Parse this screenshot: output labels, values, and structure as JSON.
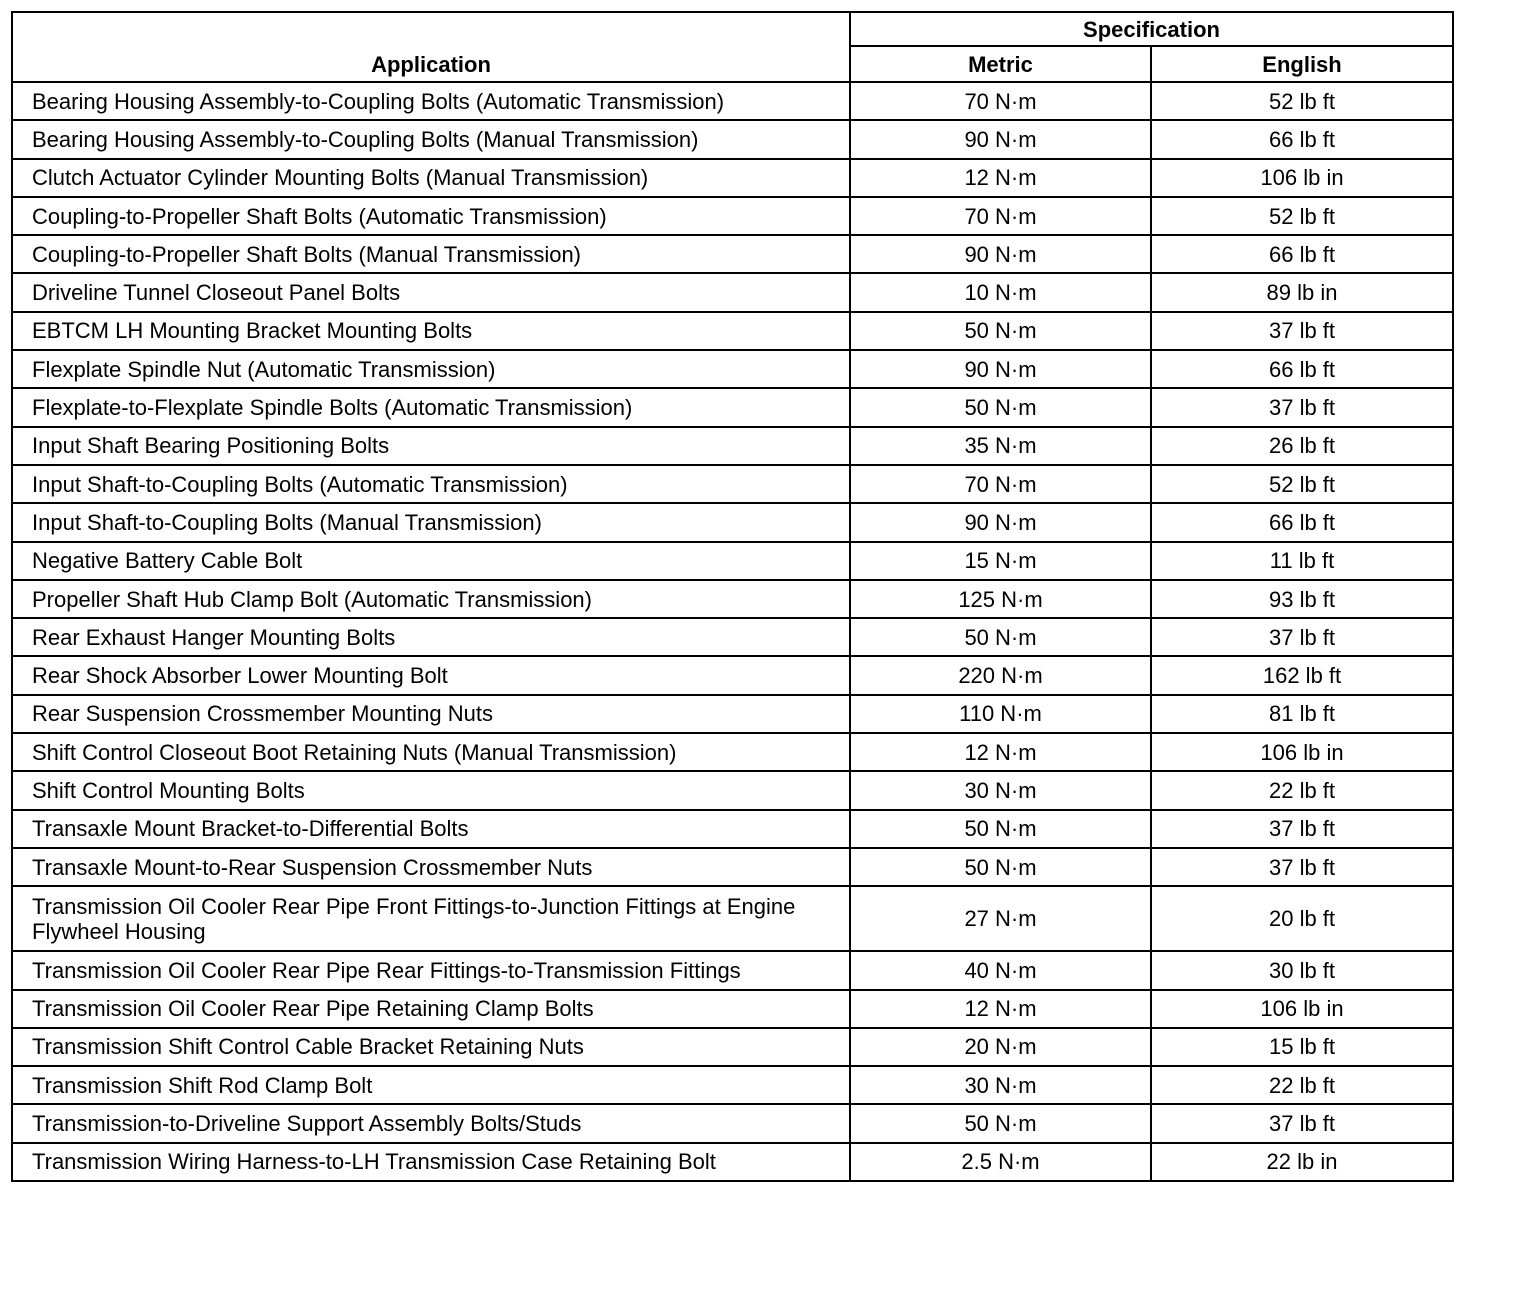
{
  "headers": {
    "application": "Application",
    "specification": "Specification",
    "metric": "Metric",
    "english": "English"
  },
  "rows": [
    {
      "application": "Bearing Housing Assembly-to-Coupling Bolts (Automatic Transmission)",
      "metric": "70 N·m",
      "english": "52 lb ft"
    },
    {
      "application": "Bearing Housing Assembly-to-Coupling Bolts (Manual Transmission)",
      "metric": "90 N·m",
      "english": "66 lb ft"
    },
    {
      "application": "Clutch Actuator Cylinder Mounting Bolts (Manual Transmission)",
      "metric": "12 N·m",
      "english": "106 lb in"
    },
    {
      "application": "Coupling-to-Propeller Shaft Bolts (Automatic Transmission)",
      "metric": "70 N·m",
      "english": "52 lb ft"
    },
    {
      "application": "Coupling-to-Propeller Shaft Bolts (Manual Transmission)",
      "metric": "90 N·m",
      "english": "66 lb ft"
    },
    {
      "application": "Driveline Tunnel Closeout Panel Bolts",
      "metric": "10 N·m",
      "english": "89 lb in"
    },
    {
      "application": "EBTCM LH Mounting Bracket Mounting Bolts",
      "metric": "50 N·m",
      "english": "37 lb ft"
    },
    {
      "application": "Flexplate Spindle Nut (Automatic Transmission)",
      "metric": "90 N·m",
      "english": "66 lb ft"
    },
    {
      "application": "Flexplate-to-Flexplate Spindle Bolts (Automatic Transmission)",
      "metric": "50 N·m",
      "english": "37 lb ft"
    },
    {
      "application": "Input Shaft Bearing Positioning Bolts",
      "metric": "35 N·m",
      "english": "26 lb ft"
    },
    {
      "application": "Input Shaft-to-Coupling Bolts (Automatic Transmission)",
      "metric": "70 N·m",
      "english": "52 lb ft"
    },
    {
      "application": "Input Shaft-to-Coupling Bolts (Manual Transmission)",
      "metric": "90 N·m",
      "english": "66 lb ft"
    },
    {
      "application": "Negative Battery Cable Bolt",
      "metric": "15 N·m",
      "english": "11 lb ft"
    },
    {
      "application": "Propeller Shaft Hub Clamp Bolt (Automatic Transmission)",
      "metric": "125 N·m",
      "english": "93 lb ft"
    },
    {
      "application": "Rear Exhaust Hanger Mounting Bolts",
      "metric": "50 N·m",
      "english": "37 lb ft"
    },
    {
      "application": "Rear Shock Absorber Lower Mounting Bolt",
      "metric": "220 N·m",
      "english": "162 lb ft"
    },
    {
      "application": "Rear Suspension Crossmember Mounting Nuts",
      "metric": "110 N·m",
      "english": "81 lb ft"
    },
    {
      "application": "Shift Control Closeout Boot Retaining Nuts (Manual Transmission)",
      "metric": "12 N·m",
      "english": "106 lb in"
    },
    {
      "application": "Shift Control Mounting Bolts",
      "metric": "30 N·m",
      "english": "22 lb ft"
    },
    {
      "application": "Transaxle Mount Bracket-to-Differential Bolts",
      "metric": "50 N·m",
      "english": "37 lb ft"
    },
    {
      "application": "Transaxle Mount-to-Rear Suspension Crossmember Nuts",
      "metric": "50 N·m",
      "english": "37 lb ft"
    },
    {
      "application": "Transmission Oil Cooler Rear Pipe Front Fittings-to-Junction Fittings at Engine Flywheel Housing",
      "metric": "27 N·m",
      "english": "20 lb ft"
    },
    {
      "application": "Transmission Oil Cooler Rear Pipe Rear Fittings-to-Transmission Fittings",
      "metric": "40 N·m",
      "english": "30 lb ft"
    },
    {
      "application": "Transmission Oil Cooler Rear Pipe Retaining Clamp Bolts",
      "metric": "12 N·m",
      "english": "106 lb in"
    },
    {
      "application": "Transmission Shift Control Cable Bracket Retaining Nuts",
      "metric": "20 N·m",
      "english": "15 lb ft"
    },
    {
      "application": "Transmission Shift Rod Clamp Bolt",
      "metric": "30 N·m",
      "english": "22 lb ft"
    },
    {
      "application": "Transmission-to-Driveline Support Assembly Bolts/Studs",
      "metric": "50 N·m",
      "english": "37 lb ft"
    },
    {
      "application": "Transmission Wiring Harness-to-LH Transmission Case Retaining Bolt",
      "metric": "2.5 N·m",
      "english": "22 lb in"
    }
  ]
}
